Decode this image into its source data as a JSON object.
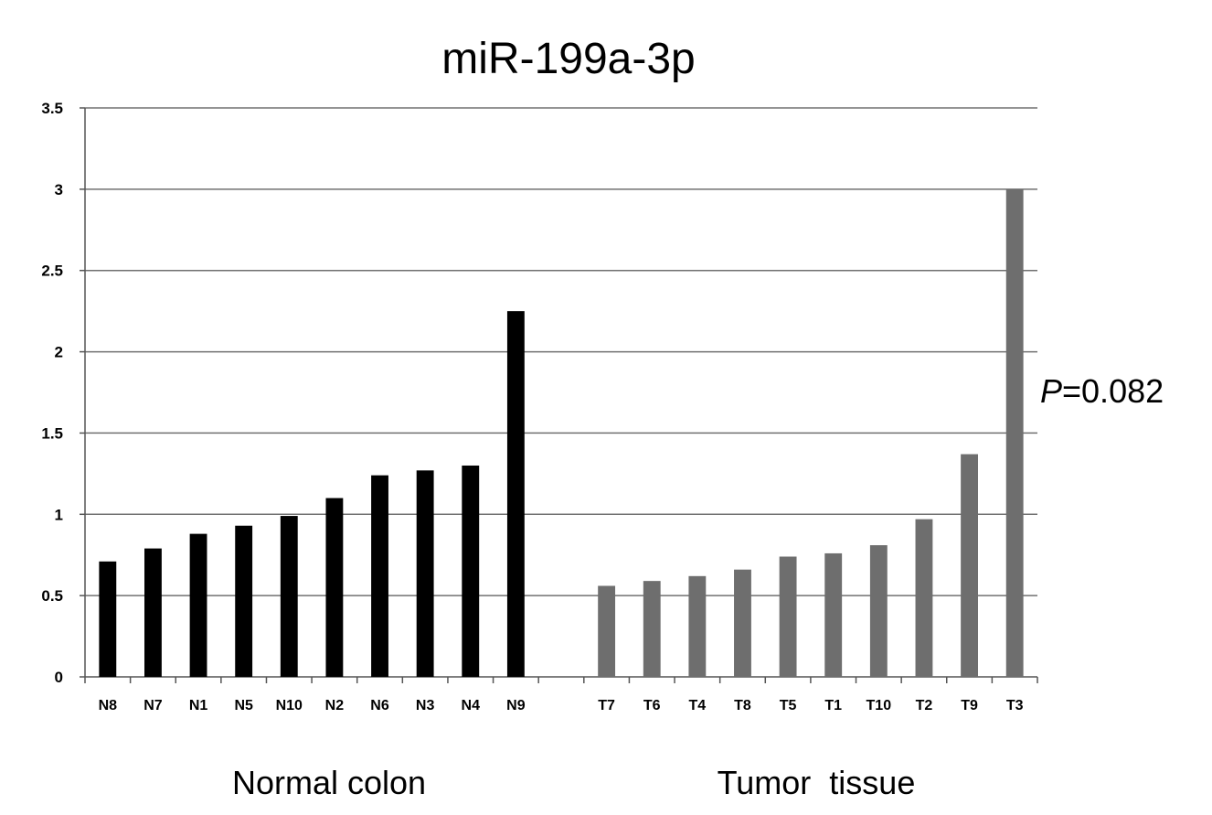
{
  "chart_data": {
    "type": "bar",
    "title": "miR-199a-3p",
    "xlabel": "",
    "ylabel": "",
    "ylim": [
      0,
      3.5
    ],
    "yticks": [
      0,
      0.5,
      1,
      1.5,
      2,
      2.5,
      3,
      3.5
    ],
    "ytick_labels": [
      "0",
      "0.5",
      "1",
      "1.5",
      "2",
      "2.5",
      "3",
      "3.5"
    ],
    "grid": true,
    "legend": "none",
    "annotation": {
      "italic": "P",
      "rest": "=0.082"
    },
    "groups": [
      {
        "label": "Normal colon",
        "color": "#000000",
        "categories": [
          "N8",
          "N7",
          "N1",
          "N5",
          "N10",
          "N2",
          "N6",
          "N3",
          "N4",
          "N9"
        ],
        "values": [
          0.71,
          0.79,
          0.88,
          0.93,
          0.99,
          1.1,
          1.24,
          1.27,
          1.3,
          2.25
        ]
      },
      {
        "label": "Tumor  tissue",
        "color": "#6e6e6e",
        "categories": [
          "T7",
          "T6",
          "T4",
          "T8",
          "T5",
          "T1",
          "T10",
          "T2",
          "T9",
          "T3"
        ],
        "values": [
          0.56,
          0.59,
          0.62,
          0.66,
          0.74,
          0.76,
          0.81,
          0.97,
          1.37,
          3.0
        ]
      }
    ]
  }
}
